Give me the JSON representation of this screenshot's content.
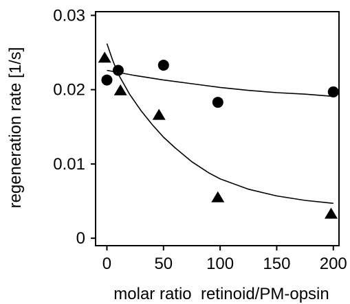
{
  "chart_data": {
    "type": "scatter",
    "title": "",
    "xlabel": "molar ratio  retinoid/PM-opsin",
    "ylabel": "regeneration rate [1/s]",
    "xlim": [
      -10,
      205
    ],
    "ylim": [
      -0.001,
      0.0305
    ],
    "x_ticks": [
      0,
      50,
      100,
      150,
      200
    ],
    "x_tick_labels": [
      "0",
      "50",
      "100",
      "150",
      "200"
    ],
    "y_ticks": [
      0,
      0.01,
      0.02,
      0.03
    ],
    "y_tick_labels": [
      "0",
      "0.01",
      "0.02",
      "0.03"
    ],
    "grid": false,
    "series": [
      {
        "marker": "circle",
        "points": [
          {
            "x": 0,
            "y": 0.0213
          },
          {
            "x": 10,
            "y": 0.0226
          },
          {
            "x": 50,
            "y": 0.0233
          },
          {
            "x": 98,
            "y": 0.0183
          },
          {
            "x": 200,
            "y": 0.0197
          }
        ],
        "fit": [
          {
            "x": 0,
            "y": 0.0226
          },
          {
            "x": 25,
            "y": 0.0219
          },
          {
            "x": 50,
            "y": 0.0213
          },
          {
            "x": 75,
            "y": 0.0208
          },
          {
            "x": 100,
            "y": 0.0203
          },
          {
            "x": 125,
            "y": 0.0199
          },
          {
            "x": 150,
            "y": 0.0196
          },
          {
            "x": 175,
            "y": 0.0194
          },
          {
            "x": 200,
            "y": 0.0191
          }
        ]
      },
      {
        "marker": "triangle",
        "points": [
          {
            "x": -2,
            "y": 0.0242
          },
          {
            "x": 12,
            "y": 0.0198
          },
          {
            "x": 46,
            "y": 0.0165
          },
          {
            "x": 98,
            "y": 0.0054
          },
          {
            "x": 198,
            "y": 0.0032
          }
        ],
        "fit": [
          {
            "x": 0,
            "y": 0.0262
          },
          {
            "x": 5,
            "y": 0.024
          },
          {
            "x": 10,
            "y": 0.0221
          },
          {
            "x": 20,
            "y": 0.0194
          },
          {
            "x": 30,
            "y": 0.0172
          },
          {
            "x": 40,
            "y": 0.0153
          },
          {
            "x": 50,
            "y": 0.0136
          },
          {
            "x": 60,
            "y": 0.0122
          },
          {
            "x": 75,
            "y": 0.0103
          },
          {
            "x": 90,
            "y": 0.0088
          },
          {
            "x": 100,
            "y": 0.008
          },
          {
            "x": 125,
            "y": 0.0066
          },
          {
            "x": 150,
            "y": 0.0057
          },
          {
            "x": 175,
            "y": 0.0051
          },
          {
            "x": 200,
            "y": 0.0047
          }
        ]
      }
    ]
  }
}
